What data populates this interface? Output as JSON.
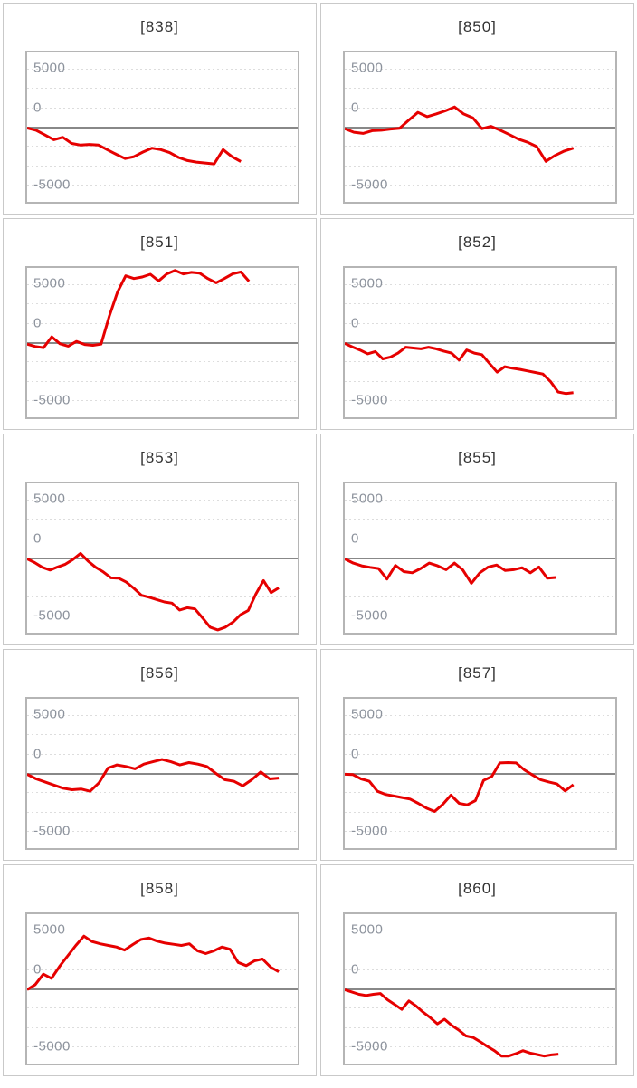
{
  "page": {
    "background": "#ffffff"
  },
  "colors": {
    "series_line": "#e60000",
    "zero_line": "#888888",
    "gridline": "#dddddd",
    "plot_border": "#b5b5b5",
    "card_border": "#c9c9c9",
    "title_text": "#333333",
    "axis_label_text": "#8c929c"
  },
  "chart_data": {
    "type": "line",
    "layout": "grid 2 columns x 5 rows, one mini line chart per machine",
    "ylim": [
      -9600,
      9600
    ],
    "ytick_labels": [
      "5000",
      "0",
      "-5000"
    ],
    "ytick_values": [
      5000,
      0,
      -5000
    ],
    "ytick_label_pos_pct": [
      10,
      37,
      88.7
    ],
    "gridline_values": [
      7500,
      5000,
      2500,
      0,
      -2500,
      -5000,
      -7500
    ],
    "zero_line_value": 0,
    "xaxis_labels": "none (sequential samples, line starts at left edge)",
    "legend": "none",
    "series_color": "#e60000",
    "charts": [
      {
        "id": "838",
        "title": "[838]",
        "x_fill": 0.79,
        "values": [
          -100,
          -400,
          -1000,
          -1620,
          -1300,
          -2100,
          -2310,
          -2230,
          -2300,
          -2900,
          -3500,
          -4040,
          -3800,
          -3200,
          -2700,
          -2890,
          -3270,
          -3900,
          -4300,
          -4500,
          -4620,
          -4730,
          -2890,
          -3800,
          -4430
        ]
      },
      {
        "id": "850",
        "title": "[850]",
        "x_fill": 0.845,
        "values": [
          -200,
          -650,
          -800,
          -450,
          -400,
          -250,
          -150,
          900,
          1900,
          1350,
          1700,
          2100,
          2600,
          1700,
          1200,
          -200,
          100,
          -400,
          -950,
          -1550,
          -1950,
          -2500,
          -4400,
          -3650,
          -3080,
          -2700
        ]
      },
      {
        "id": "851",
        "title": "[851]",
        "x_fill": 0.82,
        "values": [
          -200,
          -500,
          -650,
          750,
          -150,
          -450,
          150,
          -250,
          -350,
          -200,
          3400,
          6500,
          8600,
          8250,
          8450,
          8800,
          7950,
          8850,
          9300,
          8850,
          9050,
          8950,
          8250,
          7700,
          8250,
          8850,
          9100,
          7900
        ]
      },
      {
        "id": "852",
        "title": "[852]",
        "x_fill": 0.845,
        "values": [
          -100,
          -550,
          -950,
          -1450,
          -1150,
          -2100,
          -1850,
          -1350,
          -600,
          -700,
          -800,
          -600,
          -800,
          -1100,
          -1350,
          -2250,
          -950,
          -1350,
          -1550,
          -2700,
          -3800,
          -3100,
          -3300,
          -3450,
          -3650,
          -3850,
          -4050,
          -5000,
          -6350,
          -6550,
          -6450
        ]
      },
      {
        "id": "853",
        "title": "[853]",
        "x_fill": 0.93,
        "values": [
          -100,
          -600,
          -1200,
          -1550,
          -1150,
          -800,
          -200,
          600,
          -400,
          -1200,
          -1800,
          -2550,
          -2600,
          -3100,
          -3900,
          -4800,
          -5050,
          -5350,
          -5650,
          -5800,
          -6700,
          -6400,
          -6550,
          -7700,
          -8900,
          -9250,
          -8900,
          -8250,
          -7300,
          -6750,
          -4650,
          -2900,
          -4450,
          -3850
        ]
      },
      {
        "id": "855",
        "title": "[855]",
        "x_fill": 0.78,
        "values": [
          -100,
          -650,
          -1000,
          -1200,
          -1350,
          -2700,
          -950,
          -1750,
          -1900,
          -1350,
          -650,
          -1000,
          -1500,
          -650,
          -1550,
          -3250,
          -1900,
          -1150,
          -900,
          -1600,
          -1500,
          -1250,
          -1900,
          -1150,
          -2600,
          -2500
        ]
      },
      {
        "id": "856",
        "title": "[856]",
        "x_fill": 0.93,
        "values": [
          -100,
          -700,
          -1100,
          -1500,
          -1900,
          -2100,
          -2000,
          -2300,
          -1200,
          700,
          1100,
          900,
          600,
          1200,
          1500,
          1800,
          1500,
          1100,
          1400,
          1200,
          900,
          0,
          -800,
          -1000,
          -1600,
          -800,
          200,
          -700,
          -600
        ]
      },
      {
        "id": "857",
        "title": "[857]",
        "x_fill": 0.845,
        "values": [
          -100,
          -150,
          -700,
          -1000,
          -2300,
          -2700,
          -2900,
          -3100,
          -3300,
          -3850,
          -4450,
          -4900,
          -4000,
          -2800,
          -3850,
          -4050,
          -3500,
          -900,
          -400,
          1350,
          1400,
          1350,
          450,
          -200,
          -800,
          -1100,
          -1350,
          -2250,
          -1450
        ]
      },
      {
        "id": "858",
        "title": "[858]",
        "x_fill": 0.93,
        "values": [
          -100,
          550,
          1900,
          1350,
          2900,
          4250,
          5600,
          6800,
          6100,
          5800,
          5600,
          5400,
          5000,
          5700,
          6350,
          6550,
          6150,
          5900,
          5750,
          5600,
          5800,
          4900,
          4550,
          4900,
          5400,
          5100,
          3400,
          3000,
          3600,
          3850,
          2800,
          2200
        ]
      },
      {
        "id": "860",
        "title": "[860]",
        "x_fill": 0.79,
        "values": [
          -100,
          -400,
          -700,
          -850,
          -700,
          -600,
          -1400,
          -2000,
          -2650,
          -1550,
          -2200,
          -3000,
          -3700,
          -4500,
          -3900,
          -4700,
          -5300,
          -6050,
          -6250,
          -6800,
          -7400,
          -7950,
          -8650,
          -8650,
          -8350,
          -7950,
          -8250,
          -8450,
          -8650,
          -8500,
          -8400
        ]
      }
    ]
  }
}
